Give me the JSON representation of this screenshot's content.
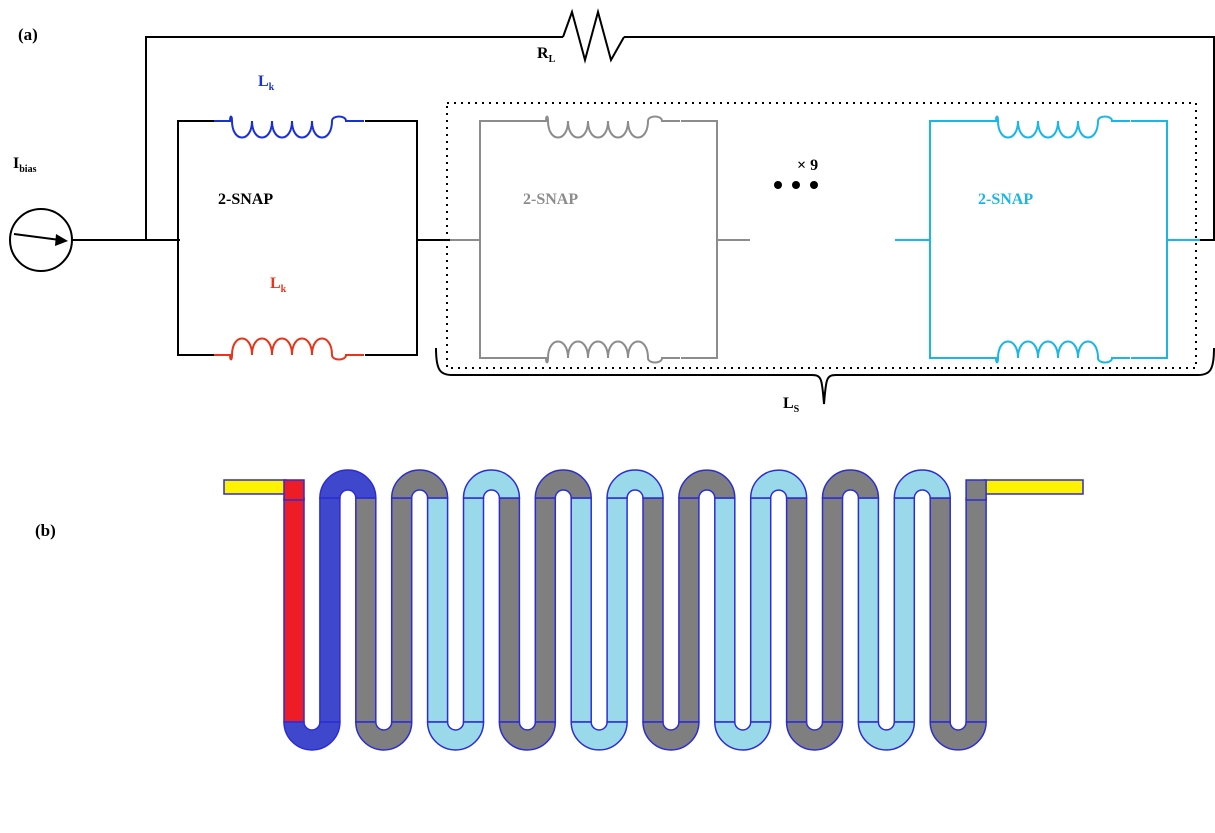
{
  "panel_a": {
    "label": "(a)",
    "rl_main": "R",
    "rl_sub": "L",
    "ibias_main": "I",
    "ibias_sub": "bias",
    "lk_main": "L",
    "lk_sub": "k",
    "snap_label": "2-SNAP",
    "repeat_label": "× 9",
    "ls_main": "L",
    "ls_sub": "S"
  },
  "panel_b": {
    "label": "(b)",
    "segments": {
      "first_left": "red",
      "first_right": "blue",
      "pattern": [
        "gray",
        "gray",
        "light-blue",
        "light-blue",
        "gray",
        "gray",
        "light-blue",
        "light-blue",
        "gray",
        "gray",
        "light-blue",
        "light-blue",
        "gray",
        "gray",
        "light-blue",
        "light-blue",
        "gray",
        "gray"
      ]
    }
  },
  "colors": {
    "black": "#000000",
    "blue": "#1a2fd6",
    "red": "#e8341a",
    "gray": "#8c8c8c",
    "cyan": "#19b6e6",
    "meander_red": "#ee1c25",
    "meander_blue": "#3f48cc",
    "meander_gray": "#7f7f7f",
    "meander_light_blue": "#99d9ea",
    "meander_yellow": "#fff200",
    "meander_outline": "#2c2cd6"
  }
}
